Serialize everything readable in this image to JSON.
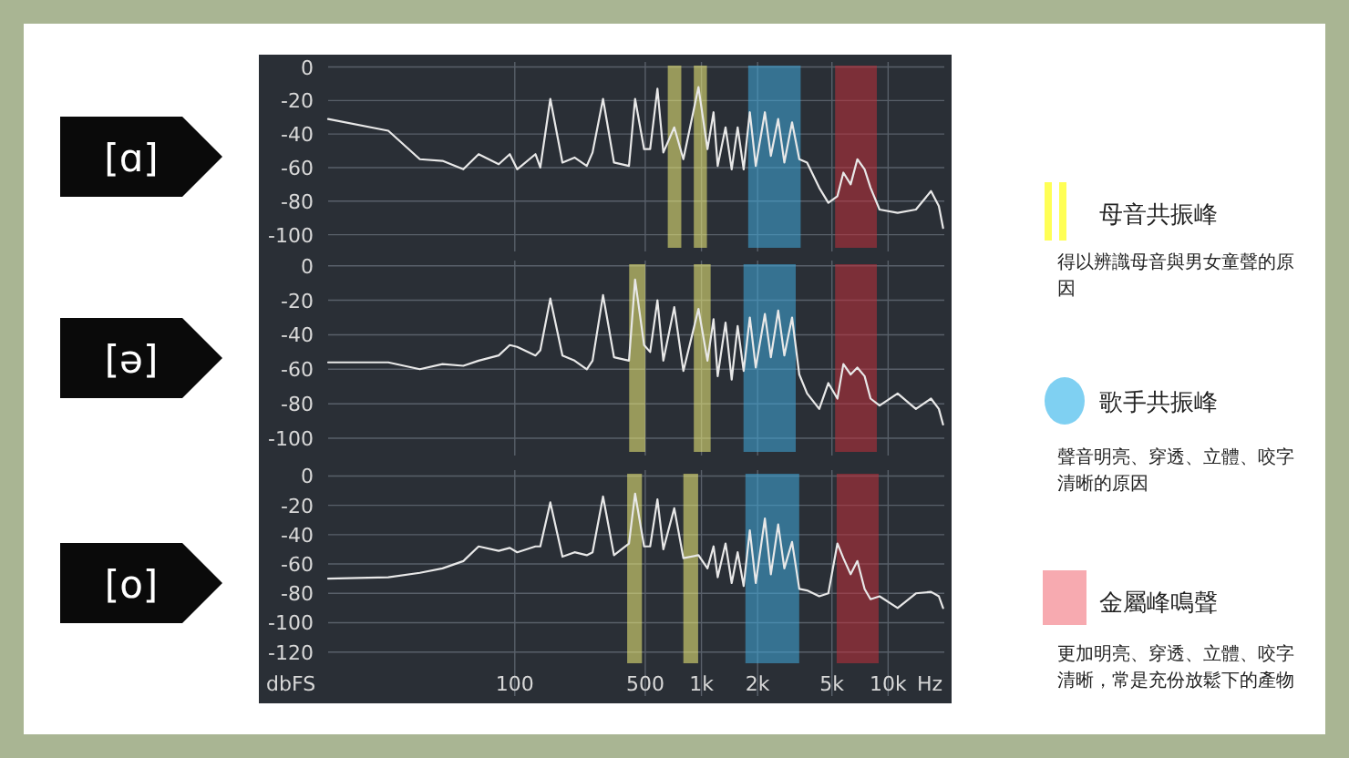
{
  "chart_data": [
    {
      "type": "line",
      "title": "[ɑ]",
      "log": "x",
      "grid": true,
      "tick_labels": "y",
      "xlim": [
        10,
        20000
      ],
      "ylim": [
        -110,
        3
      ],
      "yticks": [
        0,
        -20,
        -40,
        -60,
        -80,
        -100
      ],
      "x": [
        10,
        21,
        31,
        41,
        53,
        64,
        82,
        94,
        103,
        129,
        137,
        155,
        180,
        209,
        243,
        261,
        297,
        340,
        409,
        441,
        493,
        531,
        581,
        625,
        715,
        800,
        964,
        1077,
        1161,
        1222,
        1346,
        1452,
        1563,
        1683,
        1816,
        1954,
        2187,
        2355,
        2577,
        2780,
        3058,
        3343,
        3681,
        4276,
        4784,
        5351,
        5759,
        6300,
        6843,
        7482,
        8054,
        9000,
        11250,
        14090,
        16980,
        18700,
        19700
      ],
      "series": [
        {
          "color": "#e8e8e8",
          "values": [
            -31,
            -38,
            -55,
            -56,
            -61,
            -52,
            -58,
            -52,
            -61,
            -52,
            -60,
            -19,
            -57,
            -54,
            -59,
            -51,
            -19,
            -57,
            -59,
            -19,
            -49,
            -49,
            -13,
            -51,
            -36,
            -55,
            -12,
            -49,
            -27,
            -59,
            -36,
            -61,
            -36,
            -61,
            -27,
            -59,
            -27,
            -53,
            -31,
            -57,
            -33,
            -55,
            -57,
            -72,
            -81,
            -77,
            -63,
            -70,
            -55,
            -61,
            -72,
            -85,
            -87,
            -85,
            -74,
            -83,
            -96
          ]
        }
      ],
      "bands": [
        {
          "axis": "x",
          "from": 660,
          "to": 780,
          "color": "#f2f07a"
        },
        {
          "axis": "x",
          "from": 910,
          "to": 1070,
          "color": "#f2f07a"
        },
        {
          "axis": "x",
          "from": 1780,
          "to": 3400,
          "color": "#3fa9dc"
        },
        {
          "axis": "x",
          "from": 5200,
          "to": 8700,
          "color": "#c0303a"
        }
      ]
    },
    {
      "type": "line",
      "title": "[ə]",
      "log": "x",
      "grid": true,
      "tick_labels": "y",
      "xlim": [
        10,
        20000
      ],
      "ylim": [
        -110,
        3
      ],
      "yticks": [
        0,
        -20,
        -40,
        -60,
        -80,
        -100
      ],
      "x": [
        10,
        21,
        31,
        41,
        53,
        64,
        82,
        94,
        103,
        129,
        137,
        155,
        180,
        209,
        243,
        261,
        297,
        340,
        409,
        441,
        493,
        531,
        581,
        625,
        715,
        800,
        964,
        1077,
        1161,
        1222,
        1346,
        1452,
        1563,
        1683,
        1816,
        1954,
        2187,
        2355,
        2577,
        2780,
        3058,
        3343,
        3681,
        4276,
        4784,
        5351,
        5759,
        6300,
        6843,
        7482,
        8054,
        9000,
        11250,
        14090,
        16980,
        18700,
        19700
      ],
      "series": [
        {
          "color": "#e8e8e8",
          "values": [
            -56,
            -56,
            -60,
            -57,
            -58,
            -55,
            -52,
            -46,
            -47,
            -52,
            -49,
            -19,
            -52,
            -55,
            -60,
            -55,
            -17,
            -53,
            -55,
            -8,
            -46,
            -50,
            -20,
            -55,
            -24,
            -61,
            -25,
            -55,
            -31,
            -64,
            -33,
            -66,
            -35,
            -61,
            -30,
            -59,
            -28,
            -53,
            -26,
            -52,
            -30,
            -63,
            -74,
            -83,
            -68,
            -77,
            -57,
            -63,
            -59,
            -64,
            -77,
            -81,
            -74,
            -83,
            -77,
            -83,
            -92
          ]
        }
      ],
      "bands": [
        {
          "axis": "x",
          "from": 410,
          "to": 500,
          "color": "#f2f07a"
        },
        {
          "axis": "x",
          "from": 910,
          "to": 1120,
          "color": "#f2f07a"
        },
        {
          "axis": "x",
          "from": 1680,
          "to": 3200,
          "color": "#3fa9dc"
        },
        {
          "axis": "x",
          "from": 5200,
          "to": 8700,
          "color": "#c0303a"
        }
      ]
    },
    {
      "type": "line",
      "title": "[o]",
      "log": "x",
      "grid": true,
      "xlabel": "Hz",
      "ylabel": "dbFS",
      "xlim": [
        10,
        20000
      ],
      "ylim": [
        -150,
        4
      ],
      "xticks": [
        100,
        500,
        {
          "value": 1000,
          "label": "1k"
        },
        {
          "value": 2000,
          "label": "2k"
        },
        {
          "value": 5000,
          "label": "5k"
        },
        {
          "value": 10000,
          "label": "10k"
        }
      ],
      "yticks": [
        0,
        -20,
        -40,
        -60,
        -80,
        -100,
        -120
      ],
      "x": [
        10,
        21,
        31,
        41,
        53,
        64,
        82,
        94,
        103,
        129,
        137,
        155,
        180,
        209,
        243,
        261,
        297,
        340,
        409,
        441,
        493,
        531,
        581,
        625,
        715,
        800,
        964,
        1077,
        1161,
        1222,
        1346,
        1452,
        1563,
        1683,
        1816,
        1954,
        2187,
        2355,
        2577,
        2780,
        3058,
        3343,
        3681,
        4276,
        4784,
        5351,
        5759,
        6300,
        6843,
        7482,
        8054,
        9000,
        11250,
        14090,
        16980,
        18700,
        19700
      ],
      "series": [
        {
          "color": "#e8e8e8",
          "values": [
            -70,
            -69,
            -66,
            -63,
            -58,
            -48,
            -51,
            -49,
            -52,
            -48,
            -48,
            -18,
            -55,
            -52,
            -54,
            -52,
            -14,
            -54,
            -46,
            -12,
            -48,
            -48,
            -16,
            -50,
            -22,
            -56,
            -54,
            -63,
            -48,
            -69,
            -46,
            -73,
            -52,
            -75,
            -37,
            -73,
            -29,
            -67,
            -33,
            -63,
            -45,
            -77,
            -78,
            -82,
            -80,
            -46,
            -56,
            -67,
            -58,
            -77,
            -84,
            -82,
            -90,
            -80,
            -79,
            -82,
            -90
          ]
        }
      ],
      "bands": [
        {
          "axis": "x",
          "from": 400,
          "to": 480,
          "color": "#f2f07a"
        },
        {
          "axis": "x",
          "from": 800,
          "to": 960,
          "color": "#f2f07a"
        },
        {
          "axis": "x",
          "from": 1720,
          "to": 3340,
          "color": "#3fa9dc"
        },
        {
          "axis": "x",
          "from": 5300,
          "to": 8900,
          "color": "#c0303a"
        }
      ]
    },
    {
      "type": "other",
      "annotations": [
        "母音共振峰",
        "得以辨識母音與男女童聲的原因",
        "歌手共振峰",
        "聲音明亮、穿透、立體、咬字清晰的原因",
        "金屬峰鳴聲",
        "更加明亮、穿透、立體、咬字清晰，常是充份放鬆下的產物"
      ]
    }
  ]
}
